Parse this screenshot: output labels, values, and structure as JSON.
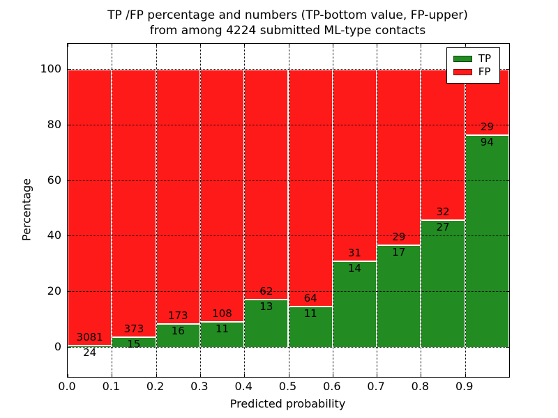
{
  "title": {
    "line1": "TP /FP percentage and numbers (TP-bottom value, FP-upper)",
    "line2": "from among 4224 submitted ML-type contacts"
  },
  "axes": {
    "xlabel": "Predicted probability",
    "ylabel": "Percentage",
    "xtick_labels": [
      "0.0",
      "0.1",
      "0.2",
      "0.3",
      "0.4",
      "0.5",
      "0.6",
      "0.7",
      "0.8",
      "0.9"
    ],
    "ytick_labels": [
      "0",
      "20",
      "40",
      "60",
      "80",
      "100"
    ],
    "ytick_values": [
      0,
      20,
      40,
      60,
      80,
      100
    ]
  },
  "legend": {
    "items": [
      {
        "label": "TP",
        "color": "#228b22"
      },
      {
        "label": "FP",
        "color": "#ff1a1a"
      }
    ]
  },
  "colors": {
    "tp": "#228b22",
    "fp": "#ff1a1a",
    "grid": "#000000",
    "background": "#ffffff"
  },
  "chart_data": {
    "type": "bar",
    "stacked": true,
    "percent_normalized": true,
    "title": "TP /FP percentage and numbers (TP-bottom value, FP-upper) from among 4224 submitted ML-type contacts",
    "xlabel": "Predicted probability",
    "ylabel": "Percentage",
    "categories": [
      "0.0",
      "0.1",
      "0.2",
      "0.3",
      "0.4",
      "0.5",
      "0.6",
      "0.7",
      "0.8",
      "0.9"
    ],
    "bin_width": 0.1,
    "series": [
      {
        "name": "TP",
        "color": "#228b22",
        "counts": [
          24,
          15,
          16,
          11,
          13,
          11,
          14,
          17,
          27,
          94
        ]
      },
      {
        "name": "FP",
        "color": "#ff1a1a",
        "counts": [
          3081,
          373,
          173,
          108,
          62,
          64,
          31,
          29,
          32,
          29
        ]
      }
    ],
    "total_contacts": 4224,
    "xlim": [
      0.0,
      1.0
    ],
    "ylim": [
      -10.5,
      109.3
    ],
    "grid": "dotted",
    "legend_position": "upper right"
  }
}
